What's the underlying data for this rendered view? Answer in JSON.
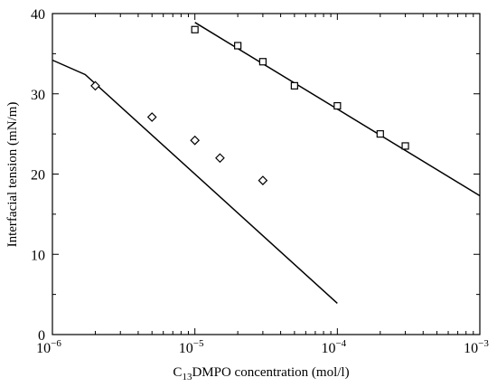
{
  "chart_data": {
    "type": "scatter",
    "title": "",
    "xscale": "log",
    "xlim": [
      1e-06,
      0.001
    ],
    "ylim": [
      0,
      40
    ],
    "xticks": [
      {
        "value": 1e-06,
        "base": "10",
        "exp": "−6"
      },
      {
        "value": 1e-05,
        "base": "10",
        "exp": "−5"
      },
      {
        "value": 0.0001,
        "base": "10",
        "exp": "−4"
      },
      {
        "value": 0.001,
        "base": "10",
        "exp": "−3"
      }
    ],
    "yticks": [
      {
        "value": 0,
        "label": "0"
      },
      {
        "value": 10,
        "label": "10"
      },
      {
        "value": 20,
        "label": "20"
      },
      {
        "value": 30,
        "label": "30"
      },
      {
        "value": 40,
        "label": "40"
      }
    ],
    "xlabel": {
      "prefix": "C",
      "sub": "13",
      "rest": "DMPO concentration (mol/l)"
    },
    "ylabel": "Interfacial tension (mN/m)",
    "grid": false,
    "legend": "none",
    "series": [
      {
        "marker": "diamond",
        "points": [
          {
            "x": 2e-06,
            "y": 31.0
          },
          {
            "x": 5e-06,
            "y": 27.1
          },
          {
            "x": 1e-05,
            "y": 24.2
          },
          {
            "x": 1.5e-05,
            "y": 22.0
          },
          {
            "x": 3e-05,
            "y": 19.2
          }
        ],
        "fit": [
          {
            "x": 1e-06,
            "y": 34.2
          },
          {
            "x": 1.7e-06,
            "y": 32.4
          },
          {
            "x": 0.0001,
            "y": 3.9
          }
        ]
      },
      {
        "marker": "square",
        "points": [
          {
            "x": 1e-05,
            "y": 38.0
          },
          {
            "x": 2e-05,
            "y": 36.0
          },
          {
            "x": 3e-05,
            "y": 34.0
          },
          {
            "x": 5e-05,
            "y": 31.0
          },
          {
            "x": 0.0001,
            "y": 28.5
          },
          {
            "x": 0.0002,
            "y": 25.0
          },
          {
            "x": 0.0003,
            "y": 23.5
          }
        ],
        "fit": [
          {
            "x": 1e-05,
            "y": 38.9
          },
          {
            "x": 0.001,
            "y": 17.3
          }
        ]
      }
    ]
  }
}
